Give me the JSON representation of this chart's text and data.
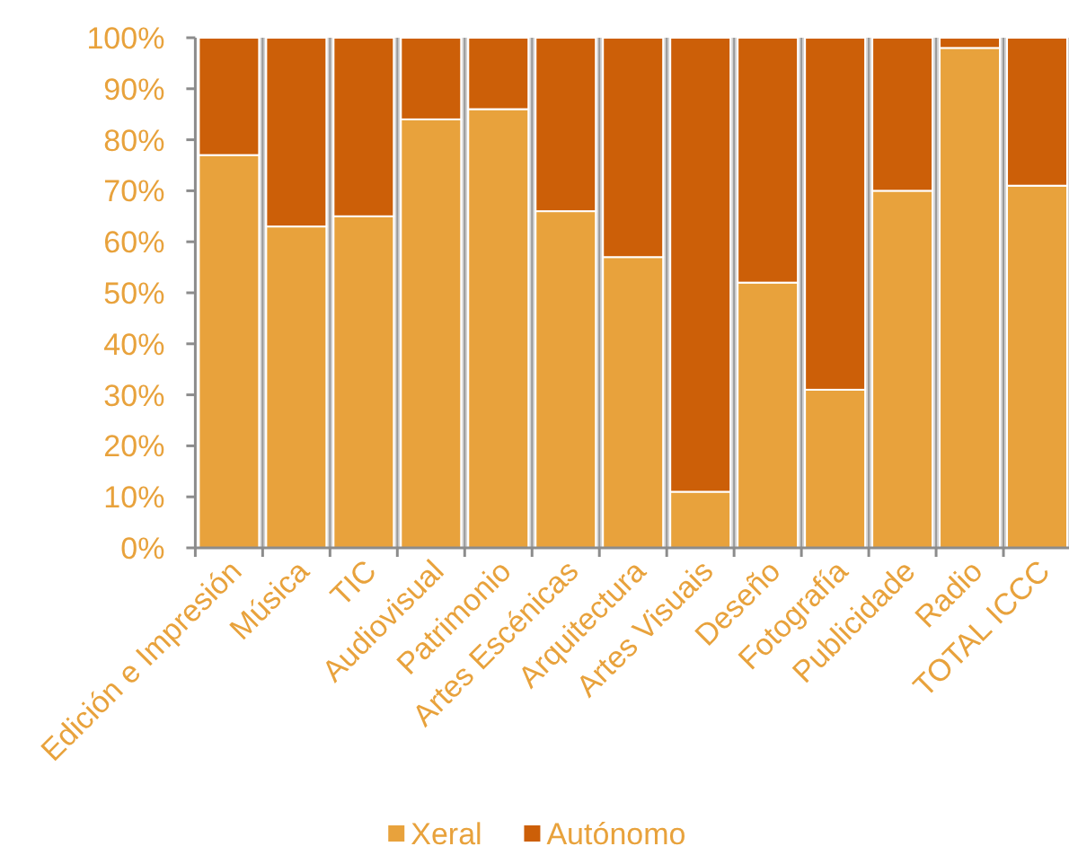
{
  "chart_data": {
    "type": "bar",
    "stacked": true,
    "categories": [
      "Edición e Impresión",
      "Música",
      "TIC",
      "Audiovisual",
      "Patrimonio",
      "Artes Escénicas",
      "Arquitectura",
      "Artes Visuais",
      "Deseño",
      "Fotografía",
      "Publicidade",
      "Radio",
      "TOTAL ICCC"
    ],
    "series": [
      {
        "name": "Xeral",
        "color": "#e8a23c",
        "values": [
          77,
          63,
          65,
          84,
          86,
          66,
          57,
          11,
          52,
          31,
          70,
          98,
          71
        ]
      },
      {
        "name": "Autónomo",
        "color": "#cc5f08",
        "values": [
          23,
          37,
          35,
          16,
          14,
          34,
          43,
          89,
          48,
          69,
          30,
          2,
          29
        ]
      }
    ],
    "ylim": [
      0,
      100
    ],
    "yticks": [
      {
        "value": 0,
        "label": "0%"
      },
      {
        "value": 10,
        "label": "10%"
      },
      {
        "value": 20,
        "label": "20%"
      },
      {
        "value": 30,
        "label": "30%"
      },
      {
        "value": 40,
        "label": "40%"
      },
      {
        "value": 50,
        "label": "50%"
      },
      {
        "value": 60,
        "label": "60%"
      },
      {
        "value": 70,
        "label": "70%"
      },
      {
        "value": 80,
        "label": "80%"
      },
      {
        "value": 90,
        "label": "90%"
      },
      {
        "value": 100,
        "label": "100%"
      }
    ],
    "grid": "x",
    "legend": "bottom"
  }
}
